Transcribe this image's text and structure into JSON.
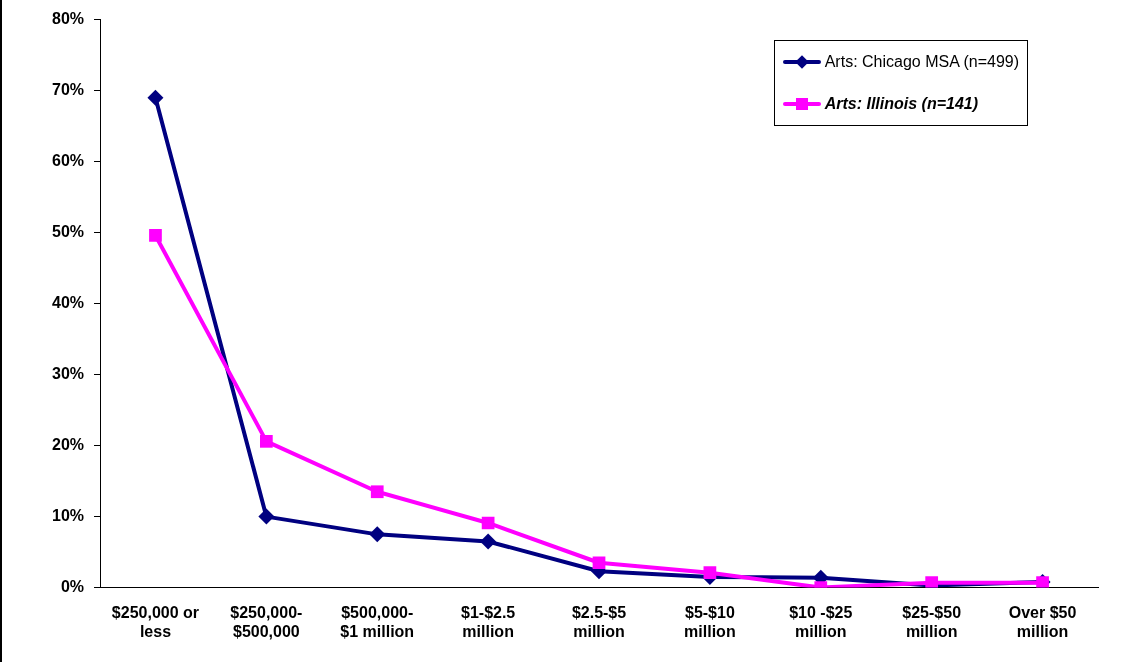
{
  "chart_data": {
    "type": "line",
    "categories": [
      "$250,000 or less",
      "$250,000-$500,000",
      "$500,000-$1 million",
      "$1-$2.5 million",
      "$2.5-$5 million",
      "$5-$10 million",
      "$10 -$25 million",
      "$25-$50 million",
      "Over $50 million"
    ],
    "series": [
      {
        "name": "Arts: Chicago MSA (n=499)",
        "color": "#000080",
        "marker": "diamond",
        "values": [
          69,
          10,
          7.5,
          6.5,
          2.3,
          1.5,
          1.4,
          0.3,
          0.8
        ]
      },
      {
        "name": "Arts: Illinois (n=141)",
        "color": "#ff00ff",
        "marker": "square",
        "values": [
          49.6,
          20.6,
          13.5,
          9.1,
          3.5,
          2.1,
          0,
          0.7,
          0.7
        ]
      }
    ],
    "ylim": [
      0,
      80
    ],
    "yticks": [
      {
        "value": 0,
        "label": "0%"
      },
      {
        "value": 10,
        "label": "10%"
      },
      {
        "value": 20,
        "label": "20%"
      },
      {
        "value": 30,
        "label": "30%"
      },
      {
        "value": 40,
        "label": "40%"
      },
      {
        "value": 50,
        "label": "50%"
      },
      {
        "value": 60,
        "label": "60%"
      },
      {
        "value": 70,
        "label": "70%"
      },
      {
        "value": 80,
        "label": "80%"
      }
    ],
    "grid": false,
    "legend": "top right"
  }
}
